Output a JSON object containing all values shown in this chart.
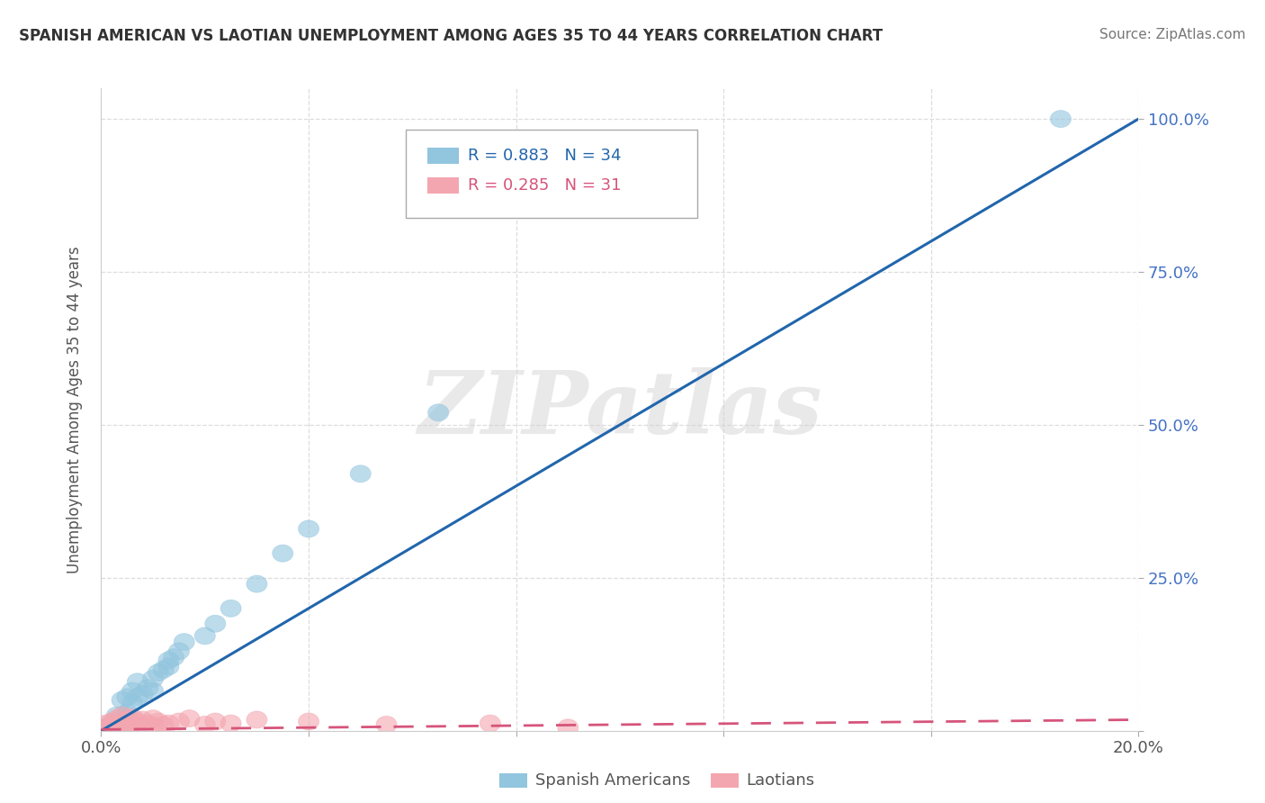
{
  "title": "SPANISH AMERICAN VS LAOTIAN UNEMPLOYMENT AMONG AGES 35 TO 44 YEARS CORRELATION CHART",
  "source": "Source: ZipAtlas.com",
  "ylabel": "Unemployment Among Ages 35 to 44 years",
  "xlim": [
    0.0,
    0.2
  ],
  "ylim": [
    0.0,
    1.05
  ],
  "blue_R": 0.883,
  "blue_N": 34,
  "pink_R": 0.285,
  "pink_N": 31,
  "blue_color": "#92c5de",
  "pink_color": "#f4a6b0",
  "blue_line_color": "#2166ac",
  "pink_line_color": "#d6547a",
  "legend_label_blue": "Spanish Americans",
  "legend_label_pink": "Laotians",
  "blue_scatter_x": [
    0.001,
    0.002,
    0.002,
    0.003,
    0.003,
    0.004,
    0.004,
    0.005,
    0.005,
    0.005,
    0.006,
    0.006,
    0.007,
    0.007,
    0.008,
    0.009,
    0.01,
    0.01,
    0.011,
    0.012,
    0.013,
    0.013,
    0.014,
    0.015,
    0.016,
    0.02,
    0.022,
    0.025,
    0.03,
    0.035,
    0.04,
    0.05,
    0.065,
    0.185
  ],
  "blue_scatter_y": [
    0.005,
    0.008,
    0.012,
    0.015,
    0.025,
    0.01,
    0.05,
    0.03,
    0.055,
    0.02,
    0.065,
    0.045,
    0.055,
    0.08,
    0.06,
    0.07,
    0.065,
    0.085,
    0.095,
    0.1,
    0.105,
    0.115,
    0.12,
    0.13,
    0.145,
    0.155,
    0.175,
    0.2,
    0.24,
    0.29,
    0.33,
    0.42,
    0.52,
    1.0
  ],
  "pink_scatter_x": [
    0.001,
    0.001,
    0.002,
    0.002,
    0.003,
    0.003,
    0.004,
    0.004,
    0.005,
    0.005,
    0.006,
    0.006,
    0.007,
    0.007,
    0.008,
    0.009,
    0.01,
    0.01,
    0.011,
    0.012,
    0.013,
    0.015,
    0.017,
    0.02,
    0.022,
    0.025,
    0.03,
    0.04,
    0.055,
    0.075,
    0.09
  ],
  "pink_scatter_y": [
    0.005,
    0.012,
    0.008,
    0.015,
    0.01,
    0.02,
    0.008,
    0.025,
    0.012,
    0.018,
    0.01,
    0.022,
    0.015,
    0.01,
    0.018,
    0.012,
    0.02,
    0.008,
    0.015,
    0.01,
    0.012,
    0.015,
    0.02,
    0.01,
    0.015,
    0.012,
    0.018,
    0.015,
    0.01,
    0.012,
    0.005
  ],
  "blue_line_x": [
    0.0,
    0.2
  ],
  "blue_line_y": [
    0.0,
    1.0
  ],
  "pink_line_x": [
    0.0,
    0.2
  ],
  "pink_line_y": [
    0.002,
    0.018
  ],
  "watermark": "ZIPatlas",
  "background_color": "#ffffff",
  "grid_color": "#dddddd"
}
